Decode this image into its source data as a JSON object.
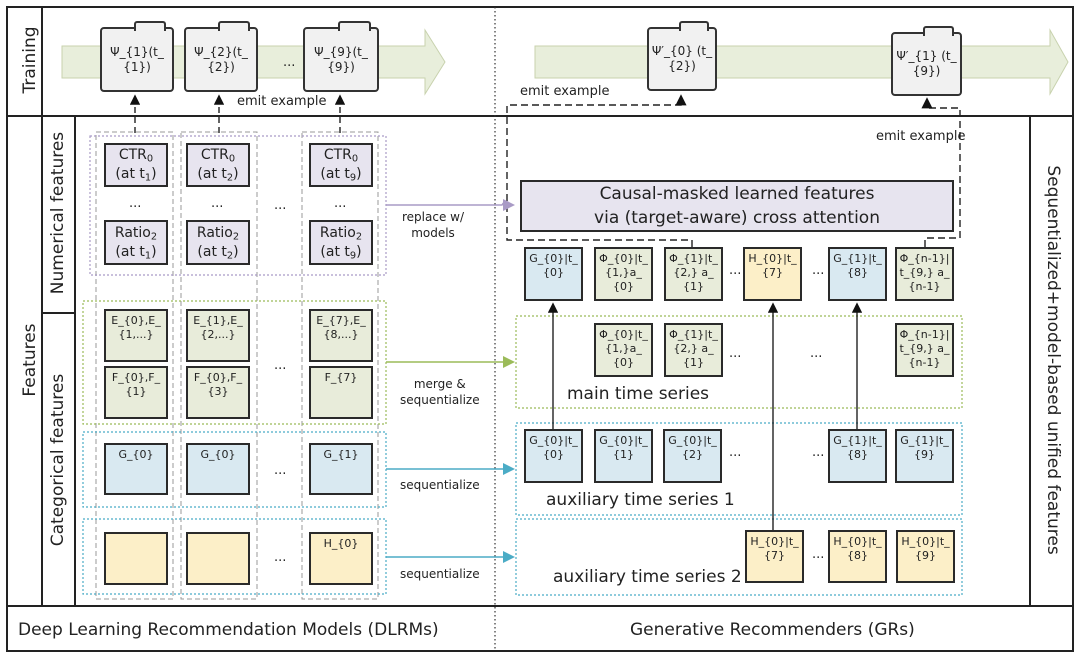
{
  "rows": {
    "training": "Training",
    "features": "Features",
    "numerical": "Numerical features",
    "categorical": "Categorical features",
    "right_label": "Sequentialized+model-based unified features"
  },
  "footer": {
    "left": "Deep Learning Recommendation Models (DLRMs)",
    "right": "Generative Recommenders (GRs)"
  },
  "training": {
    "dlrm_examples": [
      "Ψ_{1}(t_{1})",
      "Ψ_{2}(t_{2})",
      "Ψ_{9}(t_{9})"
    ],
    "gr_examples": [
      "Ψ′_{0} (t_{2})",
      "Ψ′_{1} (t_{9})"
    ],
    "emit_label": "emit example",
    "ellipsis": "..."
  },
  "dlrm": {
    "ctr": [
      "CTR_{0}|(at t_{1})",
      "CTR_{0}|(at t_{2})",
      "CTR_{0}|(at t_{9})"
    ],
    "ratio": [
      "Ratio_{2}|(at t_{1})",
      "Ratio_{2}|(at t_{2})",
      "Ratio_{2}|(at t_{9})"
    ],
    "e": [
      "E_{0},E_{1,...}",
      "E_{1},E_{2,...}",
      "E_{7},E_{8,...}"
    ],
    "f": [
      "F_{0},F_{1}",
      "F_{0},F_{3}",
      "F_{7}"
    ],
    "g": [
      "G_{0}",
      "G_{0}",
      "G_{1}"
    ],
    "h": [
      "",
      "",
      "H_{0}"
    ]
  },
  "arrows": {
    "replace": "replace w/|models",
    "merge": "merge &|sequentialize",
    "seq1": "sequentialize",
    "seq2": "sequentialize"
  },
  "gr": {
    "causal": "Causal-masked learned features|via (target-aware) cross attention",
    "unified": [
      "G_{0}|t_{0}",
      "Φ_{0}|t_{1,}a_{0}",
      "Φ_{1}|t_{2,} a_{1}",
      "H_{0}|t_{7}",
      "G_{1}|t_{8}",
      "Φ_{n-1}|t_{9,} a_{n-1}"
    ],
    "main": [
      "Φ_{0}|t_{1,}a_{0}",
      "Φ_{1}|t_{2,} a_{1}",
      "Φ_{n-1}|t_{9,} a_{n-1}"
    ],
    "main_label": "main time series",
    "aux1": [
      "G_{0}|t_{0}",
      "G_{0}|t_{1}",
      "G_{0}|t_{2}",
      "G_{1}|t_{8}",
      "G_{1}|t_{9}"
    ],
    "aux1_label": "auxiliary time series 1",
    "aux2": [
      "H_{0}|t_{7}",
      "H_{0}|t_{8}",
      "H_{0}|t_{9}"
    ],
    "aux2_label": "auxiliary time series 2"
  },
  "colors": {
    "green": "#e8ecda",
    "blue": "#d9e9f1",
    "yellow": "#fcefc8",
    "purple": "#e7e4ef",
    "green_line": "#9bbb59",
    "blue_line": "#4bacc6",
    "purple_line": "#a99bc6"
  }
}
